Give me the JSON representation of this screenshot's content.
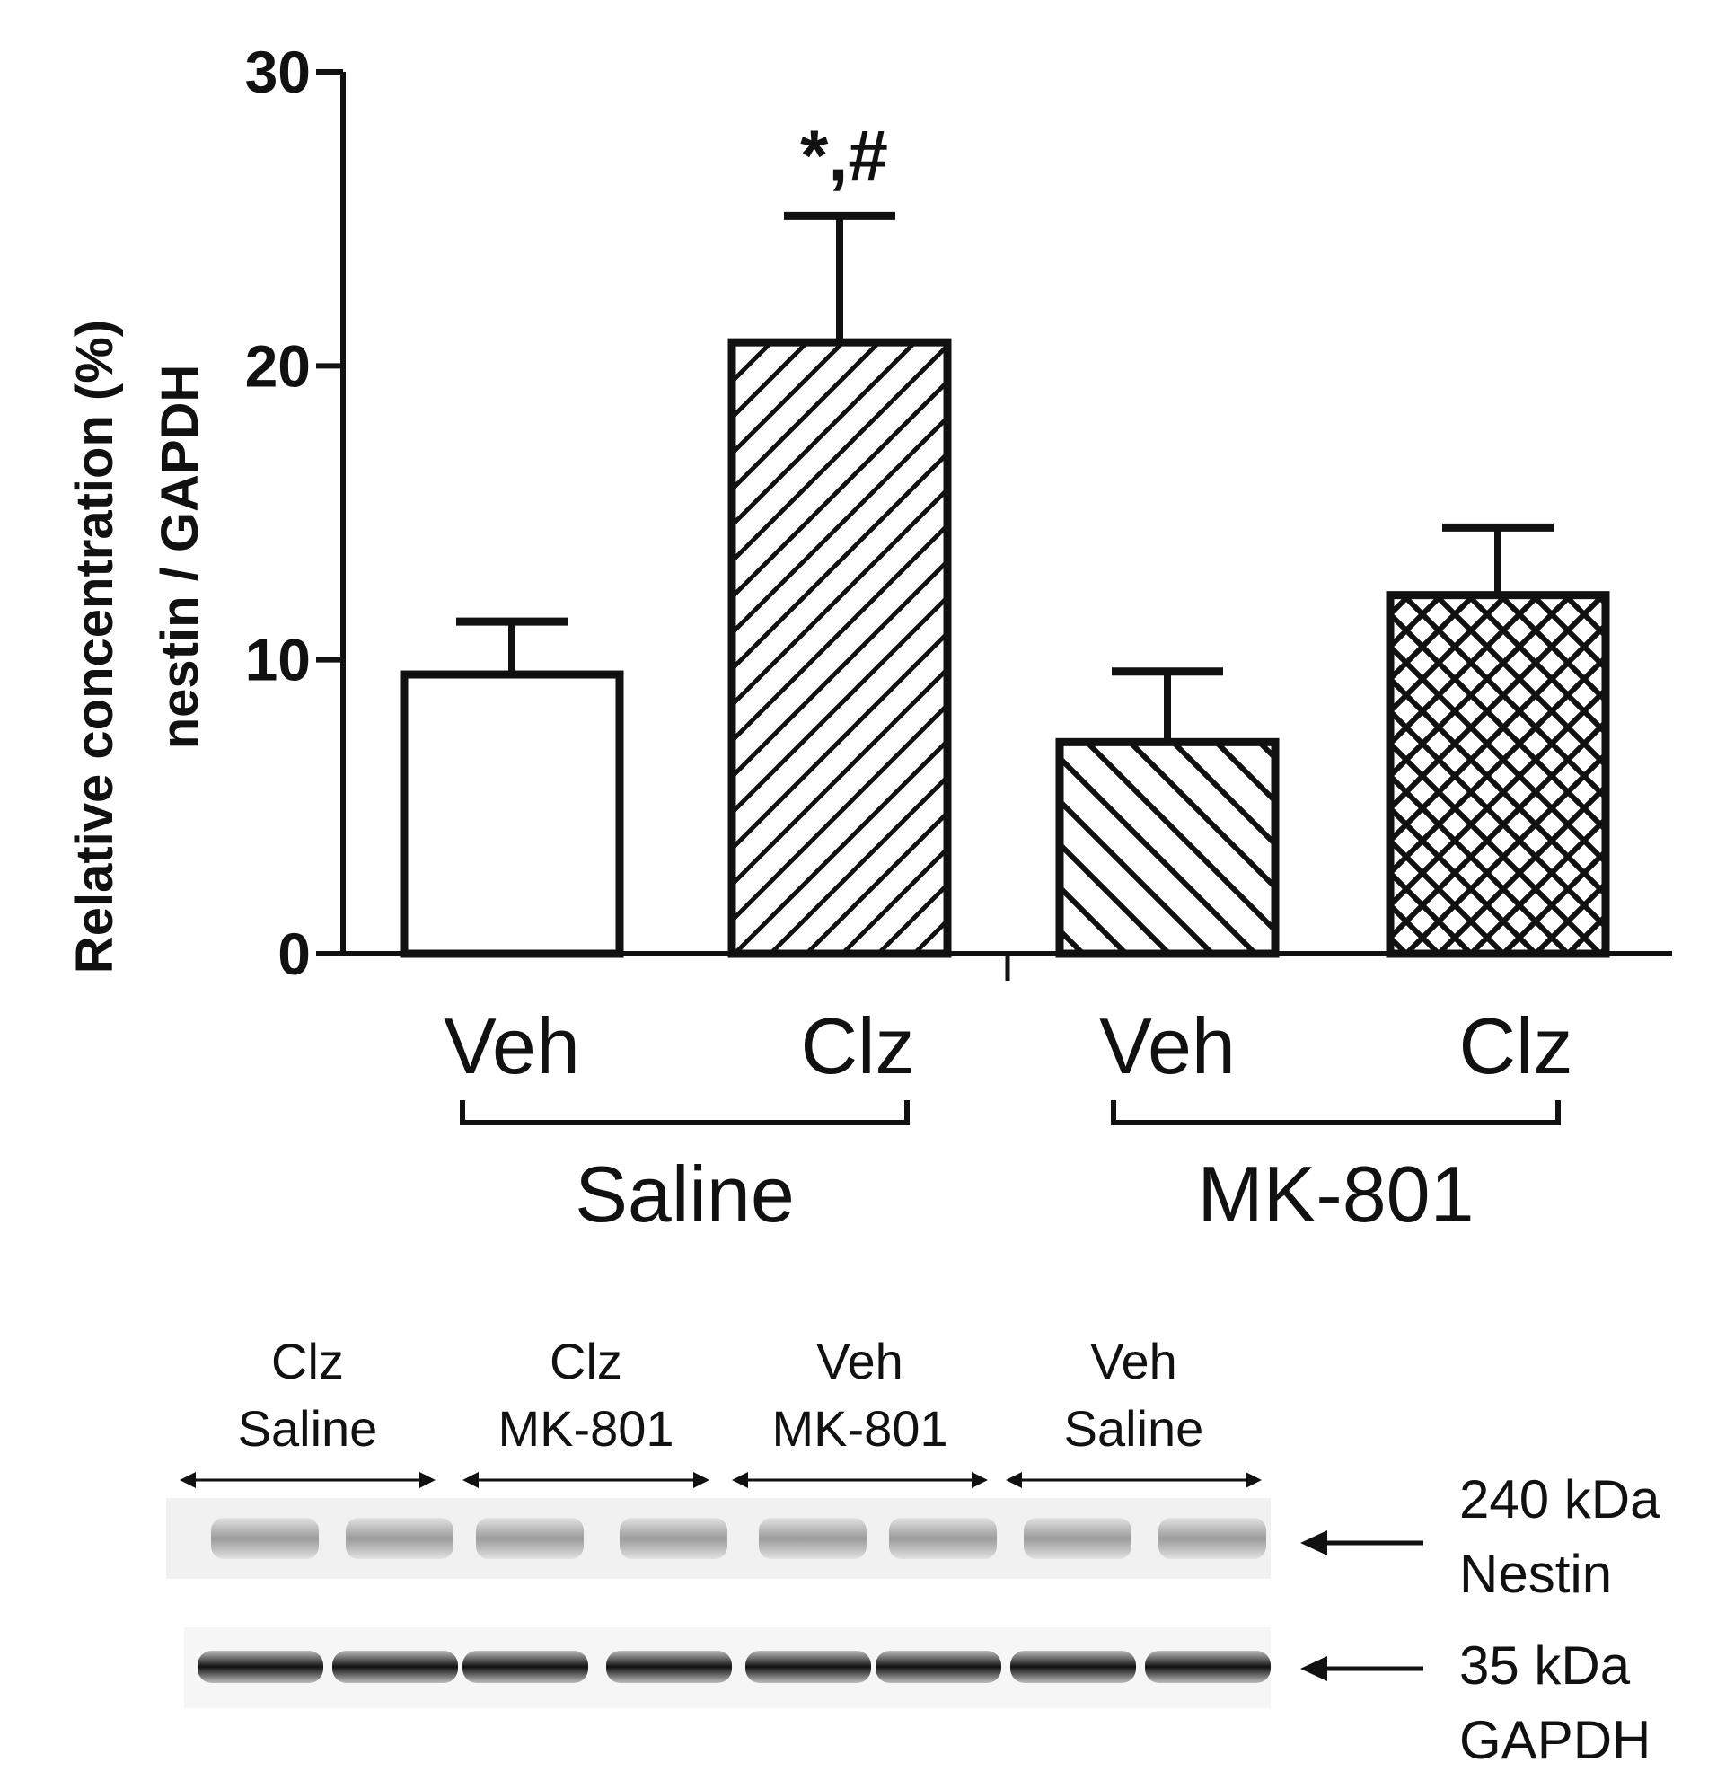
{
  "chart_data": {
    "type": "bar",
    "ylabel_line1": "Relative concentration (%)",
    "ylabel_line2": "nestin / GAPDH",
    "ylim": [
      0,
      30
    ],
    "yticks": [
      0,
      10,
      20,
      30
    ],
    "grid": false,
    "categories": [
      "Veh",
      "Clz",
      "Veh",
      "Clz"
    ],
    "groups": [
      {
        "name": "Saline",
        "categories": [
          "Veh",
          "Clz"
        ]
      },
      {
        "name": "MK-801",
        "categories": [
          "Veh",
          "Clz"
        ]
      }
    ],
    "values": [
      9.5,
      20.8,
      7.2,
      12.2
    ],
    "errors": [
      1.8,
      4.3,
      2.4,
      2.3
    ],
    "patterns": [
      "none",
      "diagonal-up",
      "diagonal-down",
      "crosshatch"
    ],
    "annotations": [
      {
        "category_index": 1,
        "text": "*,#"
      }
    ]
  },
  "blot": {
    "lanes": [
      {
        "treatment": "Clz",
        "group": "Saline"
      },
      {
        "treatment": "Clz",
        "group": "MK-801"
      },
      {
        "treatment": "Veh",
        "group": "MK-801"
      },
      {
        "treatment": "Veh",
        "group": "Saline"
      }
    ],
    "markers": [
      {
        "size": "240 kDa",
        "protein": "Nestin"
      },
      {
        "size": "35 kDa",
        "protein": "GAPDH"
      }
    ]
  }
}
